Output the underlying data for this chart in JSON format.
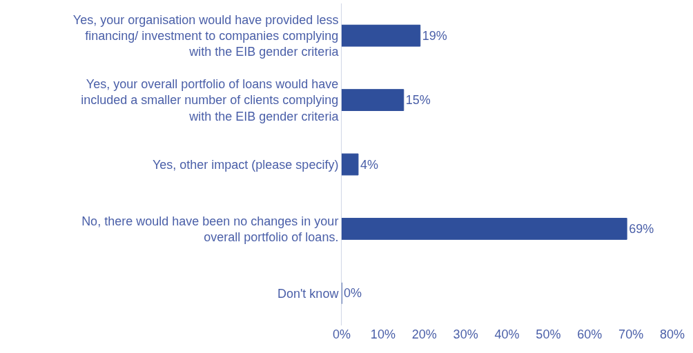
{
  "chart_data": {
    "type": "bar",
    "orientation": "horizontal",
    "categories": [
      "Yes, your organisation would have provided less financing/ investment to companies complying with the EIB gender criteria",
      "Yes, your overall portfolio of loans would have included a smaller number of clients complying with the EIB gender criteria",
      "Yes, other impact (please specify)",
      "No, there would have been no changes in your overall portfolio of loans.",
      "Don't know"
    ],
    "values": [
      19,
      15,
      4,
      69,
      0
    ],
    "value_labels": [
      "19%",
      "15%",
      "4%",
      "69%",
      "0%"
    ],
    "color": "#2f4f9b",
    "xlim": [
      0,
      80
    ],
    "xticks": [
      {
        "value": 0,
        "label": "0%"
      },
      {
        "value": 10,
        "label": "10%"
      },
      {
        "value": 20,
        "label": "20%"
      },
      {
        "value": 30,
        "label": "30%"
      },
      {
        "value": 40,
        "label": "40%"
      },
      {
        "value": 50,
        "label": "50%"
      },
      {
        "value": 60,
        "label": "60%"
      },
      {
        "value": 70,
        "label": "70%"
      },
      {
        "value": 80,
        "label": "80%"
      }
    ],
    "legend": false
  }
}
